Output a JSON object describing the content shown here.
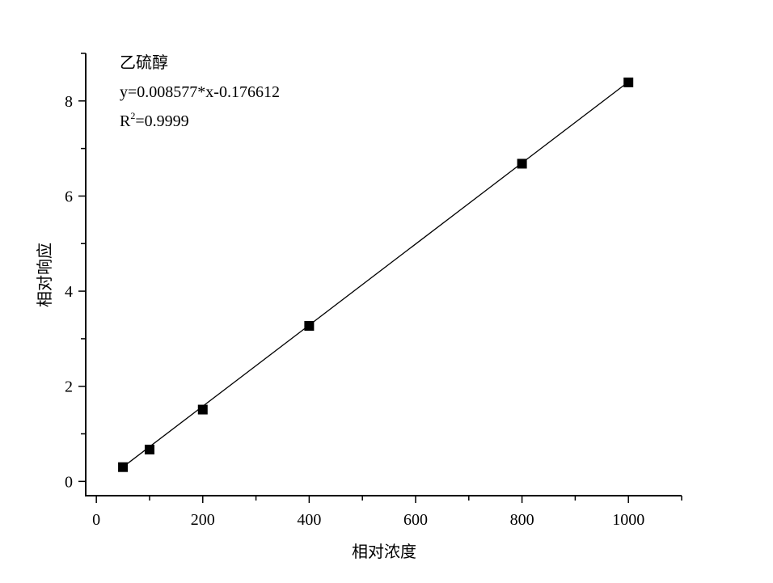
{
  "chart_data": {
    "type": "scatter",
    "xlabel": "相对浓度",
    "ylabel": "相对响应",
    "xlim": [
      -20,
      1100
    ],
    "ylim": [
      -0.3,
      9.0
    ],
    "xticks": [
      0,
      200,
      400,
      600,
      800,
      1000
    ],
    "yticks": [
      0,
      2,
      4,
      6,
      8
    ],
    "x_minor_step": 100,
    "y_minor_step": 1,
    "grid": false,
    "marker": "square",
    "colors": {
      "marker": "#000000",
      "line": "#000000"
    },
    "x": [
      50,
      100,
      200,
      400,
      800,
      1000
    ],
    "y": [
      0.3,
      0.67,
      1.51,
      3.27,
      6.68,
      8.39
    ],
    "fit": {
      "slope": 0.008577,
      "intercept": -0.176612
    },
    "annotation": {
      "compound": "乙硫醇",
      "equation": "y=0.008577*x-0.176612",
      "r2_label": "R",
      "r2_sup": "2",
      "r2_value": "=0.9999"
    }
  }
}
